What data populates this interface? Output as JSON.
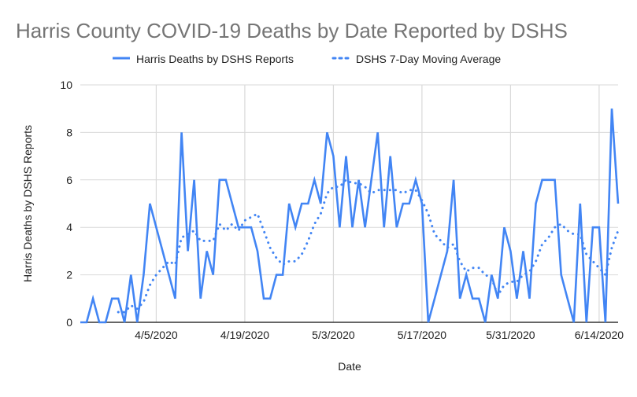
{
  "chart_data": {
    "type": "line",
    "title": "Harris County COVID-19 Deaths by Date Reported by DSHS",
    "xlabel": "Date",
    "ylabel": "Harris Deaths by DSHS Reports",
    "ylim": [
      0,
      10
    ],
    "yticks": [
      "0",
      "2",
      "4",
      "6",
      "8",
      "10"
    ],
    "xtick_labels": [
      "4/5/2020",
      "4/19/2020",
      "5/3/2020",
      "5/17/2020",
      "5/31/2020",
      "6/14/2020"
    ],
    "grid": true,
    "legend_position": "top",
    "x": [
      "3/24/2020",
      "3/25/2020",
      "3/26/2020",
      "3/27/2020",
      "3/28/2020",
      "3/29/2020",
      "3/30/2020",
      "3/31/2020",
      "4/1/2020",
      "4/2/2020",
      "4/3/2020",
      "4/4/2020",
      "4/5/2020",
      "4/6/2020",
      "4/7/2020",
      "4/8/2020",
      "4/9/2020",
      "4/10/2020",
      "4/11/2020",
      "4/12/2020",
      "4/13/2020",
      "4/14/2020",
      "4/15/2020",
      "4/16/2020",
      "4/17/2020",
      "4/18/2020",
      "4/19/2020",
      "4/20/2020",
      "4/21/2020",
      "4/22/2020",
      "4/23/2020",
      "4/24/2020",
      "4/25/2020",
      "4/26/2020",
      "4/27/2020",
      "4/28/2020",
      "4/29/2020",
      "4/30/2020",
      "5/1/2020",
      "5/2/2020",
      "5/3/2020",
      "5/4/2020",
      "5/5/2020",
      "5/6/2020",
      "5/7/2020",
      "5/8/2020",
      "5/9/2020",
      "5/10/2020",
      "5/11/2020",
      "5/12/2020",
      "5/13/2020",
      "5/14/2020",
      "5/15/2020",
      "5/16/2020",
      "5/17/2020",
      "5/18/2020",
      "5/19/2020",
      "5/20/2020",
      "5/21/2020",
      "5/22/2020",
      "5/23/2020",
      "5/24/2020",
      "5/25/2020",
      "5/26/2020",
      "5/27/2020",
      "5/28/2020",
      "5/29/2020",
      "5/30/2020",
      "5/31/2020",
      "6/1/2020",
      "6/2/2020",
      "6/3/2020",
      "6/4/2020",
      "6/5/2020",
      "6/6/2020",
      "6/7/2020",
      "6/8/2020",
      "6/9/2020",
      "6/10/2020",
      "6/11/2020",
      "6/12/2020",
      "6/13/2020",
      "6/14/2020",
      "6/15/2020",
      "6/16/2020",
      "6/17/2020"
    ],
    "series": [
      {
        "name": "Harris Deaths by DSHS Reports",
        "style": "solid",
        "color": "#4285f4",
        "values": [
          0,
          0,
          1,
          0,
          0,
          1,
          1,
          0,
          2,
          0,
          2,
          5,
          4,
          3,
          2,
          1,
          8,
          3,
          6,
          1,
          3,
          2,
          6,
          6,
          5,
          4,
          4,
          4,
          3,
          1,
          1,
          2,
          2,
          5,
          4,
          5,
          5,
          6,
          5,
          8,
          7,
          4,
          7,
          4,
          6,
          4,
          6,
          8,
          4,
          7,
          4,
          5,
          5,
          6,
          5,
          0,
          1,
          2,
          3,
          6,
          1,
          2,
          1,
          1,
          0,
          2,
          1,
          4,
          3,
          1,
          3,
          1,
          5,
          6,
          6,
          6,
          2,
          1,
          0,
          5,
          0,
          4,
          4,
          0,
          9,
          5
        ]
      },
      {
        "name": "DSHS 7-Day Moving Average",
        "style": "dotted",
        "color": "#4285f4",
        "values": [
          null,
          null,
          null,
          null,
          null,
          null,
          0.43,
          0.43,
          0.71,
          0.57,
          0.86,
          1.57,
          2.0,
          2.29,
          2.57,
          2.43,
          3.57,
          3.71,
          3.86,
          3.43,
          3.43,
          3.43,
          4.14,
          3.86,
          4.14,
          3.86,
          4.29,
          4.43,
          4.57,
          3.86,
          3.14,
          2.71,
          2.43,
          2.57,
          2.57,
          2.86,
          3.43,
          4.14,
          4.57,
          5.43,
          5.71,
          5.71,
          6.0,
          5.86,
          5.86,
          5.71,
          5.43,
          5.57,
          5.57,
          5.57,
          5.57,
          5.43,
          5.57,
          5.57,
          5.14,
          4.57,
          3.71,
          3.43,
          3.14,
          3.29,
          2.57,
          2.14,
          2.29,
          2.29,
          2.0,
          1.86,
          1.14,
          1.57,
          1.71,
          1.71,
          2.0,
          2.14,
          2.57,
          3.29,
          3.57,
          4.0,
          4.14,
          3.86,
          3.71,
          3.71,
          2.86,
          2.57,
          2.29,
          2.0,
          3.14,
          3.86
        ]
      }
    ]
  }
}
